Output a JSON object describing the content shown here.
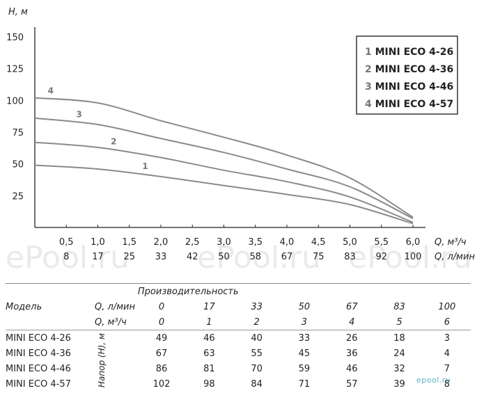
{
  "chart_data": {
    "type": "line",
    "ylabel": "H, м",
    "xlabel_q": "Q, м³/ч",
    "xlabel_l": "Q, л/мин",
    "yticks": [
      25,
      50,
      75,
      100,
      125,
      150
    ],
    "ylim": [
      0,
      150
    ],
    "xlim": [
      0,
      6.0
    ],
    "xticks_q": [
      "0,5",
      "1,0",
      "1,5",
      "2,0",
      "2,5",
      "3,0",
      "3,5",
      "4,0",
      "4,5",
      "5,0",
      "5,5",
      "6,0"
    ],
    "xticks_l": [
      "8",
      "17",
      "25",
      "33",
      "42",
      "50",
      "58",
      "67",
      "75",
      "83",
      "92",
      "100"
    ],
    "x": [
      0,
      1,
      2,
      3,
      4,
      5,
      6
    ],
    "series": [
      {
        "num": "1",
        "name": "MINI ECO 4-26",
        "values": [
          49,
          46,
          40,
          33,
          26,
          18,
          3
        ]
      },
      {
        "num": "2",
        "name": "MINI ECO 4-36",
        "values": [
          67,
          63,
          55,
          45,
          36,
          24,
          4
        ]
      },
      {
        "num": "3",
        "name": "MINI ECO 4-46",
        "values": [
          86,
          81,
          70,
          59,
          46,
          32,
          7
        ]
      },
      {
        "num": "4",
        "name": "MINI ECO 4-57",
        "values": [
          102,
          98,
          84,
          71,
          57,
          39,
          8
        ]
      }
    ],
    "legend_position": "top-right",
    "curve_color": "#8a8a8a"
  },
  "watermark": "ePool.ru",
  "table": {
    "caption": "Производительность",
    "model_header": "Модель",
    "q_l_label": "Q, л/мин",
    "q_m_label": "Q, м³/ч",
    "q_l_values": [
      "0",
      "17",
      "33",
      "50",
      "67",
      "83",
      "100"
    ],
    "q_m_values": [
      "0",
      "1",
      "2",
      "3",
      "4",
      "5",
      "6"
    ],
    "head_label": "Напор (H), м",
    "rows": [
      {
        "model": "MINI ECO 4-26",
        "values": [
          "49",
          "46",
          "40",
          "33",
          "26",
          "18",
          "3"
        ]
      },
      {
        "model": "MINI ECO 4-36",
        "values": [
          "67",
          "63",
          "55",
          "45",
          "36",
          "24",
          "4"
        ]
      },
      {
        "model": "MINI ECO 4-46",
        "values": [
          "86",
          "81",
          "70",
          "59",
          "46",
          "32",
          "7"
        ]
      },
      {
        "model": "MINI ECO 4-57",
        "values": [
          "102",
          "98",
          "84",
          "71",
          "57",
          "39",
          "8"
        ]
      }
    ]
  },
  "logo_text": "epool.ru"
}
